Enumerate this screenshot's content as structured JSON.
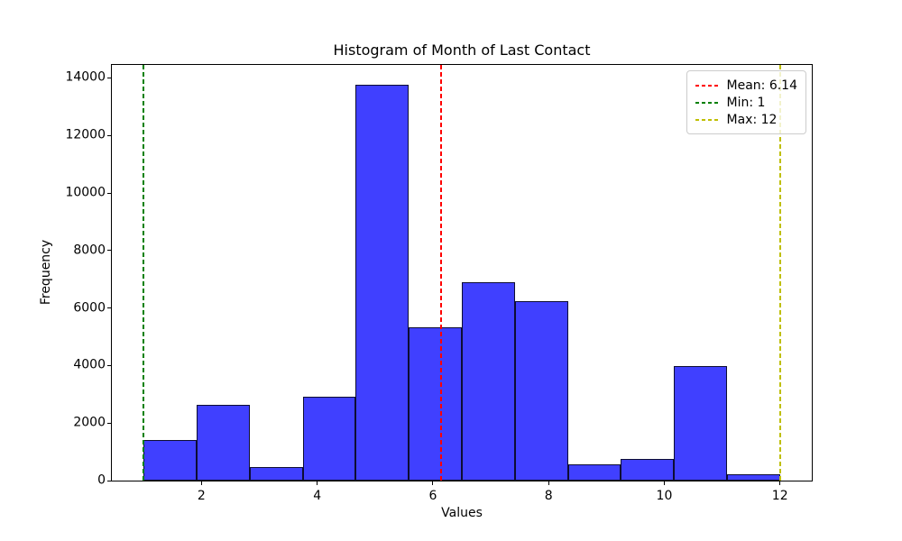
{
  "chart_data": {
    "type": "bar",
    "subtype": "histogram",
    "title": "Histogram of Month of Last Contact",
    "xlabel": "Values",
    "ylabel": "Frequency",
    "bin_edges": [
      1,
      1.9167,
      2.8333,
      3.75,
      4.6667,
      5.5833,
      6.5,
      7.4167,
      8.3333,
      9.25,
      10.1667,
      11.0833,
      12
    ],
    "counts": [
      1403,
      2649,
      477,
      2932,
      13766,
      5341,
      6895,
      6247,
      579,
      738,
      3970,
      214
    ],
    "xlim": [
      0.45,
      12.55
    ],
    "ylim": [
      0,
      14454
    ],
    "xticks": [
      2,
      4,
      6,
      8,
      10,
      12
    ],
    "yticks": [
      0,
      2000,
      4000,
      6000,
      8000,
      10000,
      12000,
      14000
    ],
    "grid": false,
    "colors": {
      "bar_fill": "rgba(0,0,255,0.75)",
      "bar_edge": "rgba(0,0,0,0.8)",
      "mean_line": "#ff0000",
      "min_line": "#008000",
      "max_line": "#bfbf00",
      "spine": "#000000"
    },
    "ref_lines": [
      {
        "name": "mean-line",
        "x": 6.14,
        "color": "#ff0000",
        "label": "Mean: 6.14"
      },
      {
        "name": "min-line",
        "x": 1,
        "color": "#008000",
        "label": "Min: 1"
      },
      {
        "name": "max-line",
        "x": 12,
        "color": "#bfbf00",
        "label": "Max: 12"
      }
    ],
    "legend": {
      "position": "upper right",
      "entries": [
        {
          "label": "Mean: 6.14",
          "color": "#ff0000"
        },
        {
          "label": "Min: 1",
          "color": "#008000"
        },
        {
          "label": "Max: 12",
          "color": "#bfbf00"
        }
      ]
    }
  }
}
